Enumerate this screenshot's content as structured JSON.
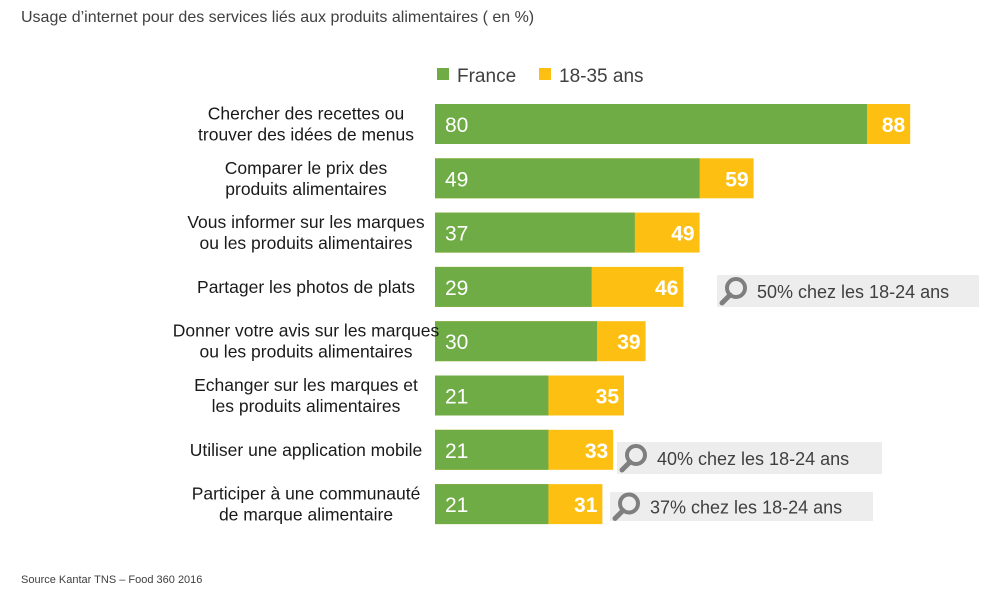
{
  "title": "Usage d’internet pour des services liés aux produits alimentaires ( en %)",
  "source": "Source Kantar TNS – Food 360 2016",
  "colors": {
    "france": "#6fac46",
    "young": "#fdc012",
    "callout_bg": "#ededed",
    "label": "#1a1a1a"
  },
  "chart_data": {
    "type": "bar",
    "orientation": "horizontal",
    "stacked": true,
    "categories": [
      [
        "Chercher des recettes ou",
        "trouver des idées de menus"
      ],
      [
        "Comparer le prix des",
        "produits alimentaires"
      ],
      [
        "Vous informer sur les marques",
        "ou les produits alimentaires"
      ],
      [
        "Partager les photos de plats"
      ],
      [
        "Donner votre avis sur les marques",
        "ou les produits alimentaires"
      ],
      [
        "Echanger sur les marques et",
        "les produits alimentaires"
      ],
      [
        "Utiliser une application mobile"
      ],
      [
        "Participer à une communauté",
        "de marque alimentaire"
      ]
    ],
    "series": [
      {
        "name": "France",
        "values": [
          80,
          49,
          37,
          29,
          30,
          21,
          21,
          21
        ]
      },
      {
        "name": "18-35 ans",
        "values": [
          88,
          59,
          49,
          46,
          39,
          35,
          33,
          31
        ]
      }
    ],
    "legend_position": "top",
    "grid": false,
    "annotations": [
      {
        "category_index": 3,
        "text": "50% chez les 18-24 ans",
        "icon": "magnifier-icon"
      },
      {
        "category_index": 6,
        "text": "40% chez les 18-24 ans",
        "icon": "magnifier-icon"
      },
      {
        "category_index": 7,
        "text": "37% chez les 18-24 ans",
        "icon": "magnifier-icon"
      }
    ]
  }
}
